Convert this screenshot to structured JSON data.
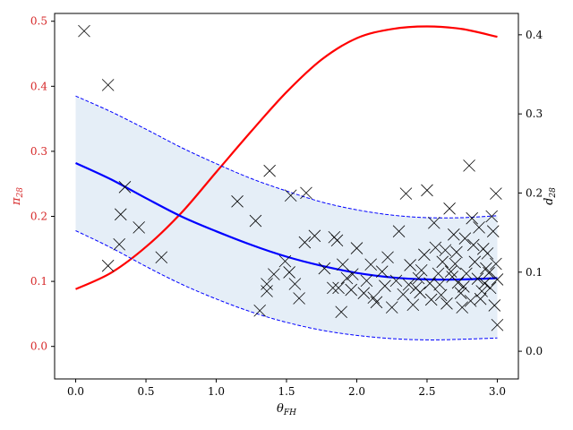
{
  "colors": {
    "left_axis": "#d62728",
    "red_curve": "#ff0000",
    "blue_curve": "#0000ff",
    "band_fill": "#dce8f4",
    "markers": "#000000",
    "axes": "#000000"
  },
  "chart_data": {
    "type": "line",
    "x": {
      "label_main": "θ",
      "label_sub": "FH",
      "lim": [
        -0.15,
        3.15
      ],
      "ticks": [
        0.0,
        0.5,
        1.0,
        1.5,
        2.0,
        2.5,
        3.0
      ],
      "tick_labels": [
        "0.0",
        "0.5",
        "1.0",
        "1.5",
        "2.0",
        "2.5",
        "3.0"
      ]
    },
    "y_left": {
      "label_main": "π",
      "label_sub": "28",
      "lim": [
        -0.05,
        0.512
      ],
      "ticks": [
        0.0,
        0.1,
        0.2,
        0.3,
        0.4,
        0.5
      ],
      "tick_labels": [
        "0.0",
        "0.1",
        "0.2",
        "0.3",
        "0.4",
        "0.5"
      ]
    },
    "y_right": {
      "label_main": "d",
      "label_sub": "28",
      "lim": [
        -0.035,
        0.427
      ],
      "ticks": [
        0.0,
        0.1,
        0.2,
        0.3,
        0.4
      ],
      "tick_labels": [
        "0.0",
        "0.1",
        "0.2",
        "0.3",
        "0.4"
      ]
    },
    "series": [
      {
        "type": "line",
        "axis": "left",
        "color": "#ff0000",
        "style": "solid",
        "x": [
          0.0,
          0.25,
          0.5,
          0.75,
          1.0,
          1.25,
          1.5,
          1.75,
          2.0,
          2.25,
          2.5,
          2.75,
          3.0
        ],
        "y": [
          0.088,
          0.113,
          0.153,
          0.205,
          0.268,
          0.331,
          0.391,
          0.441,
          0.474,
          0.488,
          0.492,
          0.488,
          0.476
        ]
      },
      {
        "type": "line",
        "axis": "left",
        "color": "#0000ff",
        "style": "solid",
        "x": [
          0.0,
          0.25,
          0.5,
          0.75,
          1.0,
          1.25,
          1.5,
          1.75,
          2.0,
          2.25,
          2.5,
          2.75,
          3.0
        ],
        "y": [
          0.282,
          0.257,
          0.228,
          0.2,
          0.177,
          0.156,
          0.138,
          0.124,
          0.113,
          0.106,
          0.103,
          0.103,
          0.105
        ]
      },
      {
        "type": "line",
        "axis": "left",
        "color": "#0000ff",
        "style": "dashed",
        "x": [
          0.0,
          0.25,
          0.5,
          0.75,
          1.0,
          1.25,
          1.5,
          1.75,
          2.0,
          2.25,
          2.5,
          2.75,
          3.0
        ],
        "y": [
          0.385,
          0.361,
          0.334,
          0.306,
          0.281,
          0.258,
          0.239,
          0.222,
          0.21,
          0.202,
          0.198,
          0.198,
          0.201
        ]
      },
      {
        "type": "line",
        "axis": "left",
        "color": "#0000ff",
        "style": "dashed",
        "x": [
          0.0,
          0.25,
          0.5,
          0.75,
          1.0,
          1.25,
          1.5,
          1.75,
          2.0,
          2.25,
          2.5,
          2.75,
          3.0
        ],
        "y": [
          0.178,
          0.152,
          0.123,
          0.096,
          0.073,
          0.053,
          0.037,
          0.025,
          0.017,
          0.012,
          0.01,
          0.011,
          0.013
        ]
      },
      {
        "type": "scatter",
        "axis": "left",
        "marker": "x",
        "color": "#000000",
        "points": [
          [
            0.06,
            0.485
          ],
          [
            0.23,
            0.402
          ],
          [
            0.35,
            0.245
          ],
          [
            0.32,
            0.203
          ],
          [
            0.45,
            0.183
          ],
          [
            0.31,
            0.157
          ],
          [
            0.23,
            0.124
          ],
          [
            0.61,
            0.137
          ],
          [
            1.15,
            0.223
          ],
          [
            1.38,
            0.27
          ],
          [
            1.28,
            0.193
          ],
          [
            1.53,
            0.232
          ],
          [
            1.64,
            0.236
          ],
          [
            1.7,
            0.17
          ],
          [
            1.63,
            0.16
          ],
          [
            1.41,
            0.111
          ],
          [
            1.36,
            0.096
          ],
          [
            1.36,
            0.085
          ],
          [
            1.31,
            0.055
          ],
          [
            1.52,
            0.114
          ],
          [
            1.56,
            0.096
          ],
          [
            1.59,
            0.074
          ],
          [
            1.49,
            0.131
          ],
          [
            1.77,
            0.12
          ],
          [
            1.84,
            0.168
          ],
          [
            1.86,
            0.163
          ],
          [
            1.9,
            0.126
          ],
          [
            1.87,
            0.09
          ],
          [
            1.83,
            0.09
          ],
          [
            1.89,
            0.053
          ],
          [
            1.97,
            0.111
          ],
          [
            2.0,
            0.151
          ],
          [
            2.05,
            0.082
          ],
          [
            2.1,
            0.126
          ],
          [
            2.12,
            0.075
          ],
          [
            2.2,
            0.093
          ],
          [
            2.22,
            0.137
          ],
          [
            2.28,
            0.101
          ],
          [
            2.3,
            0.177
          ],
          [
            2.35,
            0.235
          ],
          [
            2.38,
            0.125
          ],
          [
            2.4,
            0.064
          ],
          [
            2.45,
            0.083
          ],
          [
            2.48,
            0.141
          ],
          [
            2.5,
            0.24
          ],
          [
            2.55,
            0.19
          ],
          [
            2.58,
            0.112
          ],
          [
            2.6,
            0.079
          ],
          [
            2.63,
            0.148
          ],
          [
            2.66,
            0.212
          ],
          [
            2.69,
            0.172
          ],
          [
            2.7,
            0.127
          ],
          [
            2.72,
            0.098
          ],
          [
            2.75,
            0.06
          ],
          [
            2.77,
            0.166
          ],
          [
            2.8,
            0.278
          ],
          [
            2.82,
            0.197
          ],
          [
            2.84,
            0.13
          ],
          [
            2.86,
            0.104
          ],
          [
            2.88,
            0.073
          ],
          [
            2.9,
            0.15
          ],
          [
            2.92,
            0.12
          ],
          [
            2.95,
            0.09
          ],
          [
            2.96,
            0.2
          ],
          [
            2.98,
            0.063
          ],
          [
            2.99,
            0.235
          ],
          [
            2.97,
            0.177
          ],
          [
            3.0,
            0.103
          ],
          [
            3.0,
            0.033
          ],
          [
            2.93,
            0.143
          ],
          [
            2.87,
            0.183
          ],
          [
            2.78,
            0.112
          ],
          [
            2.74,
            0.082
          ],
          [
            2.68,
            0.107
          ],
          [
            2.64,
            0.066
          ],
          [
            2.56,
            0.152
          ],
          [
            2.52,
            0.097
          ],
          [
            2.46,
            0.117
          ],
          [
            2.42,
            0.09
          ],
          [
            2.33,
            0.08
          ],
          [
            2.25,
            0.06
          ],
          [
            2.18,
            0.115
          ],
          [
            2.14,
            0.068
          ],
          [
            2.07,
            0.101
          ],
          [
            1.96,
            0.087
          ],
          [
            1.93,
            0.105
          ],
          [
            2.61,
            0.13
          ],
          [
            2.71,
            0.145
          ],
          [
            2.83,
            0.156
          ],
          [
            2.91,
            0.097
          ],
          [
            2.94,
            0.113
          ],
          [
            2.99,
            0.127
          ],
          [
            2.89,
            0.085
          ],
          [
            2.81,
            0.07
          ],
          [
            2.76,
            0.092
          ],
          [
            2.67,
            0.115
          ],
          [
            2.59,
            0.095
          ],
          [
            2.53,
            0.072
          ],
          [
            2.44,
            0.105
          ],
          [
            2.37,
            0.095
          ]
        ]
      }
    ]
  }
}
